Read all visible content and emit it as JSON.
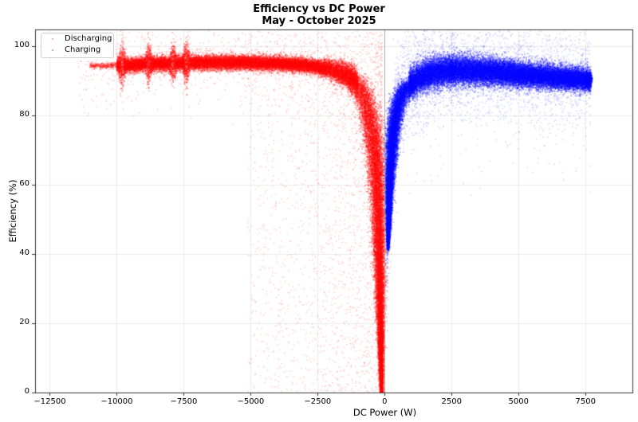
{
  "chart_data": {
    "type": "scatter",
    "title": "Efficiency vs DC Power",
    "subtitle": "May - October 2025",
    "xlabel": "DC Power (W)",
    "ylabel": "Efficiency (%)",
    "xlim": [
      -13050,
      9250
    ],
    "ylim": [
      0,
      104.8
    ],
    "xticks": [
      -12500,
      -10000,
      -7500,
      -5000,
      -2500,
      0,
      2500,
      5000,
      7500
    ],
    "xtick_labels": [
      "−12500",
      "−10000",
      "−7500",
      "−5000",
      "−2500",
      "0",
      "2500",
      "5000",
      "7500"
    ],
    "yticks": [
      0,
      20,
      40,
      60,
      80,
      100
    ],
    "ytick_labels": [
      "0",
      "20",
      "40",
      "60",
      "80",
      "100"
    ],
    "grid": true,
    "vertical_reference_line_x": 0,
    "legend_position": "upper left",
    "series": [
      {
        "name": "Discharging",
        "color": "#ff0000",
        "x_range": [
          -11000,
          -100
        ],
        "description": "Dense band near 94-95% efficiency from about -10000 W to -2000 W, dropping steeply toward 0% as power approaches about -100 W; sparse outliers scattered from 0 to 100%.",
        "curve_points": [
          [
            -11000,
            94.3
          ],
          [
            -10000,
            94.3
          ],
          [
            -9000,
            94.8
          ],
          [
            -8000,
            95.0
          ],
          [
            -7000,
            95.2
          ],
          [
            -6000,
            95.3
          ],
          [
            -5000,
            95.2
          ],
          [
            -4000,
            95.0
          ],
          [
            -3000,
            94.5
          ],
          [
            -2500,
            94.0
          ],
          [
            -2000,
            93.2
          ],
          [
            -1500,
            92.0
          ],
          [
            -1200,
            90.5
          ],
          [
            -1000,
            89.0
          ],
          [
            -800,
            86.0
          ],
          [
            -600,
            81.0
          ],
          [
            -450,
            75.0
          ],
          [
            -350,
            68.0
          ],
          [
            -280,
            60.0
          ],
          [
            -220,
            48.0
          ],
          [
            -180,
            35.0
          ],
          [
            -150,
            20.0
          ],
          [
            -130,
            8.0
          ],
          [
            -115,
            1.0
          ]
        ],
        "spikes_x": [
          -9800,
          -8800,
          -7900,
          -7400
        ]
      },
      {
        "name": "Charging",
        "color": "#0000ff",
        "x_range": [
          100,
          7700
        ],
        "description": "Rises steeply from about 42% at ~150 W to ~90% by ~1000 W, peaks around 93% near 2500-3000 W, then gently declines to about 90% at 7600 W; sparse outliers above and below.",
        "curve_points": [
          [
            130,
            42.0
          ],
          [
            160,
            52.0
          ],
          [
            200,
            62.0
          ],
          [
            260,
            70.0
          ],
          [
            350,
            77.0
          ],
          [
            500,
            83.0
          ],
          [
            700,
            87.0
          ],
          [
            1000,
            89.5
          ],
          [
            1500,
            91.5
          ],
          [
            2000,
            92.5
          ],
          [
            2500,
            93.0
          ],
          [
            3000,
            93.0
          ],
          [
            4000,
            92.6
          ],
          [
            5000,
            91.8
          ],
          [
            6000,
            91.2
          ],
          [
            7000,
            90.6
          ],
          [
            7700,
            90.2
          ]
        ]
      }
    ]
  },
  "legend": {
    "items": [
      {
        "label": "Discharging",
        "color": "#ff0000"
      },
      {
        "label": "Charging",
        "color": "#0000ff"
      }
    ]
  }
}
